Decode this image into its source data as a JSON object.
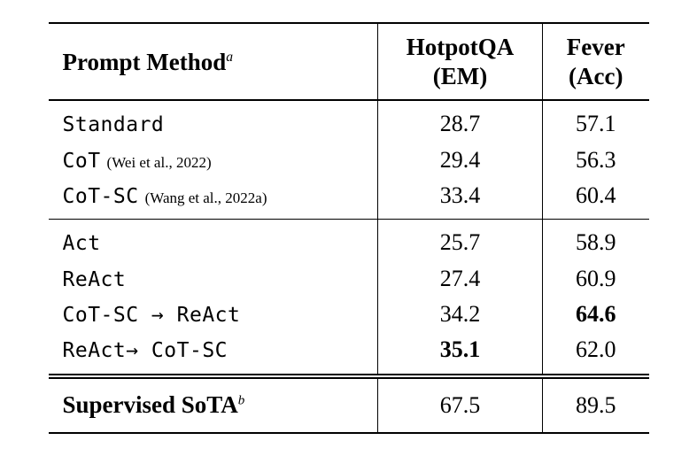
{
  "table": {
    "header": {
      "method_label": "Prompt Method",
      "method_footnote": "a",
      "hotpotqa_line1": "HotpotQA",
      "hotpotqa_line2": "(EM)",
      "fever_line1": "Fever",
      "fever_line2": "(Acc)"
    },
    "groups": [
      {
        "rows": [
          {
            "method": "Standard",
            "citation": "",
            "hotpotqa": "28.7",
            "fever": "57.1"
          },
          {
            "method": "CoT",
            "citation": "(Wei et al., 2022)",
            "hotpotqa": "29.4",
            "fever": "56.3"
          },
          {
            "method": "CoT-SC",
            "citation": "(Wang et al., 2022a)",
            "hotpotqa": "33.4",
            "fever": "60.4"
          }
        ]
      },
      {
        "rows": [
          {
            "method": "Act",
            "citation": "",
            "hotpotqa": "25.7",
            "fever": "58.9"
          },
          {
            "method": "ReAct",
            "citation": "",
            "hotpotqa": "27.4",
            "fever": "60.9"
          },
          {
            "method": "CoT-SC → ReAct",
            "citation": "",
            "hotpotqa": "34.2",
            "fever": "64.6",
            "fever_bold": true
          },
          {
            "method": "ReAct→ CoT-SC",
            "citation": "",
            "hotpotqa": "35.1",
            "hotpotqa_bold": true,
            "fever": "62.0"
          }
        ]
      }
    ],
    "footer": {
      "label": "Supervised SoTA",
      "footnote": "b",
      "hotpotqa": "67.5",
      "fever": "89.5"
    }
  }
}
